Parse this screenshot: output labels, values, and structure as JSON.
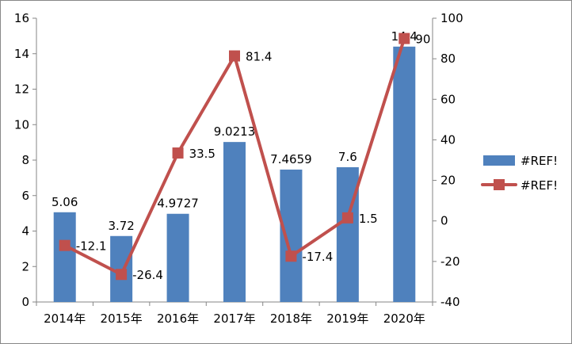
{
  "chart_data": {
    "type": "bar+line",
    "categories": [
      "2014年",
      "2015年",
      "2016年",
      "2017年",
      "2018年",
      "2019年",
      "2020年"
    ],
    "series": [
      {
        "name": "#REF!",
        "type": "bar",
        "axis": "left",
        "color": "#4f81bd",
        "values": [
          5.06,
          3.72,
          4.9727,
          9.0213,
          7.4659,
          7.6,
          14.4
        ],
        "labels": [
          "5.06",
          "3.72",
          "4.9727",
          "9.0213",
          "7.4659",
          "7.6",
          "14.4"
        ]
      },
      {
        "name": "#REF!",
        "type": "line",
        "axis": "right",
        "color": "#c0504d",
        "values": [
          -12.1,
          -26.4,
          33.5,
          81.4,
          -17.4,
          1.5,
          90
        ],
        "labels": [
          "-12.1",
          "-26.4",
          "33.5",
          "81.4",
          "-17.4",
          "1.5",
          "90"
        ]
      }
    ],
    "left_axis": {
      "min": 0,
      "max": 16,
      "step": 2,
      "ticks": [
        "0",
        "2",
        "4",
        "6",
        "8",
        "10",
        "12",
        "14",
        "16"
      ]
    },
    "right_axis": {
      "min": -40,
      "max": 100,
      "step": 20,
      "ticks": [
        "-40",
        "-20",
        "0",
        "20",
        "40",
        "60",
        "80",
        "100"
      ]
    },
    "legend": {
      "position": "right",
      "entries": [
        "#REF!",
        "#REF!"
      ]
    },
    "grid": false
  }
}
